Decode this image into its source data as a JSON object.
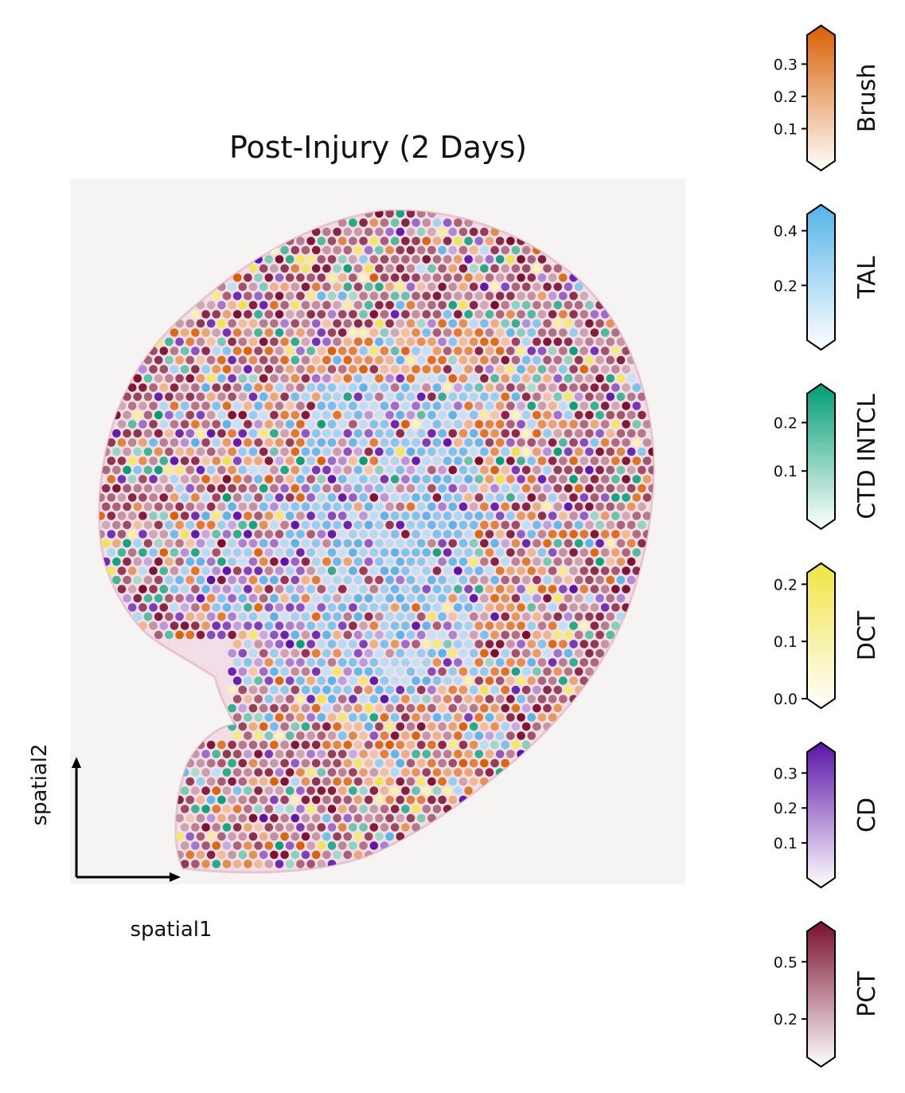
{
  "chart_data": {
    "type": "scatter",
    "title": "Post-Injury (2 Days)",
    "xlabel": "spatial1",
    "ylabel": "spatial2",
    "description_of_marks": "Visium spots over H&E tissue section, each coloured by the dominant cell type proportion",
    "colorbars": [
      {
        "name": "Brush",
        "color": "#d95f02",
        "ticks": [
          0.1,
          0.2,
          0.3
        ],
        "range": [
          0.0,
          0.39
        ],
        "tick_labels": [
          "0.1",
          "0.2",
          "0.3"
        ]
      },
      {
        "name": "TAL",
        "color": "#56b4e9",
        "ticks": [
          0.2,
          0.4
        ],
        "range": [
          0.0,
          0.46
        ],
        "tick_labels": [
          "0.2",
          "0.4"
        ]
      },
      {
        "name": "CTD INTCL",
        "color": "#009e73",
        "ticks": [
          0.1,
          0.2
        ],
        "range": [
          0.0,
          0.26
        ],
        "tick_labels": [
          "0.1",
          "0.2"
        ]
      },
      {
        "name": "DCT",
        "color": "#f0e442",
        "ticks": [
          0.0,
          0.1,
          0.2
        ],
        "range": [
          0.0,
          0.22
        ],
        "tick_labels": [
          "0.0",
          "0.1",
          "0.2"
        ]
      },
      {
        "name": "CD",
        "color": "#5b13a8",
        "ticks": [
          0.1,
          0.2,
          0.3
        ],
        "range": [
          0.0,
          0.36
        ],
        "tick_labels": [
          "0.1",
          "0.2",
          "0.3"
        ]
      },
      {
        "name": "PCT",
        "color": "#7a0f2e",
        "ticks": [
          0.2,
          0.5
        ],
        "range": [
          0.0,
          0.66
        ],
        "tick_labels": [
          "0.2",
          "0.5"
        ]
      }
    ]
  }
}
